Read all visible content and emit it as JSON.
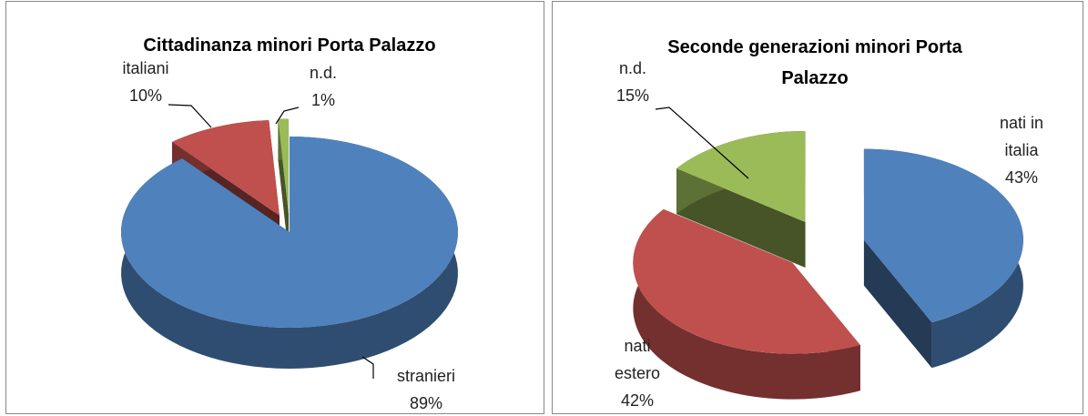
{
  "chart_data": [
    {
      "type": "pie",
      "title": "Cittadinanza minori Porta Palazzo",
      "categories": [
        "stranieri",
        "italiani",
        "n.d."
      ],
      "values": [
        89,
        10,
        1
      ],
      "value_labels": [
        "89%",
        "10%",
        "1%"
      ],
      "colors": [
        "#4f81bd",
        "#c0504d",
        "#9bbb59"
      ]
    },
    {
      "type": "pie",
      "title": "Seconde generazioni minori Porta Palazzo",
      "categories": [
        "nati in italia",
        "nati estero",
        "n.d."
      ],
      "values": [
        43,
        42,
        15
      ],
      "value_labels": [
        "43%",
        "42%",
        "15%"
      ],
      "colors": [
        "#4f81bd",
        "#c0504d",
        "#9bbb59"
      ]
    }
  ]
}
